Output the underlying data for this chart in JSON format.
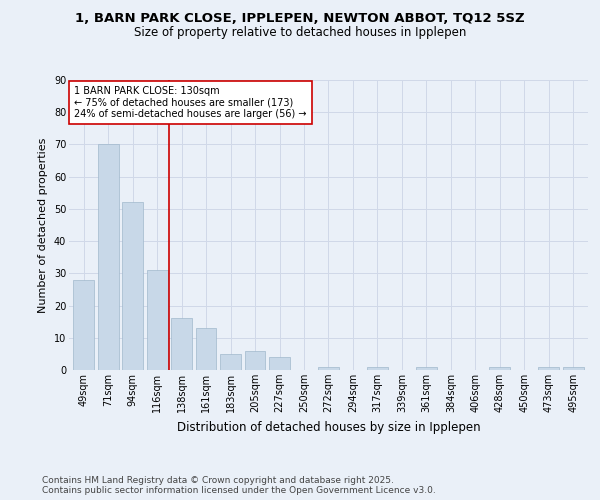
{
  "title": "1, BARN PARK CLOSE, IPPLEPEN, NEWTON ABBOT, TQ12 5SZ",
  "subtitle": "Size of property relative to detached houses in Ipplepen",
  "xlabel": "Distribution of detached houses by size in Ipplepen",
  "ylabel": "Number of detached properties",
  "categories": [
    "49sqm",
    "71sqm",
    "94sqm",
    "116sqm",
    "138sqm",
    "161sqm",
    "183sqm",
    "205sqm",
    "227sqm",
    "250sqm",
    "272sqm",
    "294sqm",
    "317sqm",
    "339sqm",
    "361sqm",
    "384sqm",
    "406sqm",
    "428sqm",
    "450sqm",
    "473sqm",
    "495sqm"
  ],
  "values": [
    28,
    70,
    52,
    31,
    16,
    13,
    5,
    6,
    4,
    0,
    1,
    0,
    1,
    0,
    1,
    0,
    0,
    1,
    0,
    1,
    1
  ],
  "bar_color": "#c8d8e8",
  "bar_edgecolor": "#a0b8cc",
  "bar_linewidth": 0.5,
  "vline_color": "#cc0000",
  "vline_pos": 3.5,
  "annotation_text": "1 BARN PARK CLOSE: 130sqm\n← 75% of detached houses are smaller (173)\n24% of semi-detached houses are larger (56) →",
  "annotation_box_color": "#ffffff",
  "annotation_box_edgecolor": "#cc0000",
  "annotation_fontsize": 7.0,
  "ylim": [
    0,
    90
  ],
  "yticks": [
    0,
    10,
    20,
    30,
    40,
    50,
    60,
    70,
    80,
    90
  ],
  "grid_color": "#d0d8e8",
  "background_color": "#eaf0f8",
  "footer_text": "Contains HM Land Registry data © Crown copyright and database right 2025.\nContains public sector information licensed under the Open Government Licence v3.0.",
  "title_fontsize": 9.5,
  "subtitle_fontsize": 8.5,
  "xlabel_fontsize": 8.5,
  "ylabel_fontsize": 8,
  "tick_fontsize": 7,
  "footer_fontsize": 6.5
}
